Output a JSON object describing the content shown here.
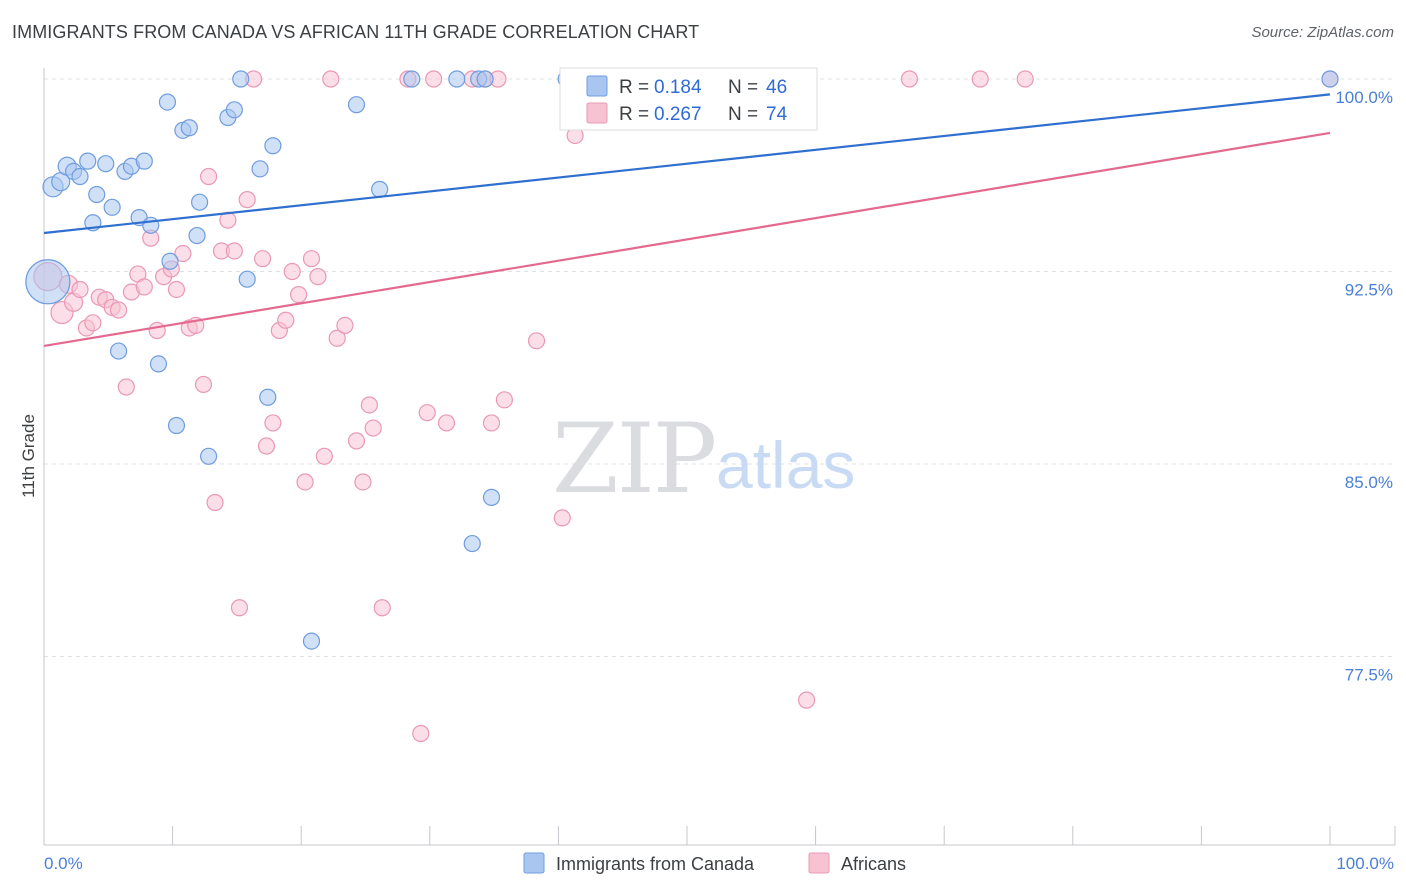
{
  "title": "IMMIGRANTS FROM CANADA VS AFRICAN 11TH GRADE CORRELATION CHART",
  "source": "Source: ZipAtlas.com",
  "watermark": {
    "zip": "ZIP",
    "atlas": "atlas"
  },
  "colors": {
    "canada_fill": "#a9c6f0",
    "canada_stroke": "#6f9ddf",
    "canada_line": "#2f6fd0",
    "africans_fill": "#f7c3d3",
    "africans_stroke": "#ea98b4",
    "africans_line": "#e4698f",
    "accent_text": "#4a7fd6",
    "grid": "#dde1e6"
  },
  "legend": {
    "rows": [
      {
        "r_label": "R =",
        "r_value": "0.184",
        "n_label": "N =",
        "n_value": "46"
      },
      {
        "r_label": "R =",
        "r_value": "0.267",
        "n_label": "N =",
        "n_value": "74"
      }
    ]
  },
  "bottom_legend": [
    "Immigrants from Canada",
    "Africans"
  ],
  "chart_data": {
    "type": "scatter",
    "title": "IMMIGRANTS FROM CANADA VS AFRICAN 11TH GRADE CORRELATION CHART",
    "xlabel": "",
    "ylabel": "11th Grade",
    "x_tick_labels": [
      "0.0%",
      "100.0%"
    ],
    "y_tick_labels": [
      "100.0%",
      "92.5%",
      "85.0%",
      "77.5%"
    ],
    "y_ticks": [
      100.0,
      92.5,
      85.0,
      77.5
    ],
    "xlim": [
      0,
      100
    ],
    "ylim": [
      71.0,
      100.6
    ],
    "grid": "horizontal dashed",
    "legend_position": "top-center",
    "series": [
      {
        "name": "Immigrants from Canada",
        "r": 0.184,
        "n": 46,
        "trend": {
          "x0": 0,
          "y0": 94.0,
          "x1": 100,
          "y1": 99.4
        },
        "points": [
          [
            0.3,
            92.1,
            22
          ],
          [
            0.7,
            95.8,
            10
          ],
          [
            1.3,
            96.0,
            9
          ],
          [
            1.8,
            96.6,
            9
          ],
          [
            2.3,
            96.4,
            8
          ],
          [
            2.8,
            96.2,
            8
          ],
          [
            3.4,
            96.8,
            8
          ],
          [
            3.8,
            94.4,
            8
          ],
          [
            4.1,
            95.5,
            8
          ],
          [
            4.8,
            96.7,
            8
          ],
          [
            5.3,
            95.0,
            8
          ],
          [
            5.8,
            89.4,
            8
          ],
          [
            6.3,
            96.4,
            8
          ],
          [
            6.8,
            96.6,
            8
          ],
          [
            7.4,
            94.6,
            8
          ],
          [
            7.8,
            96.8,
            8
          ],
          [
            8.3,
            94.3,
            8
          ],
          [
            8.9,
            88.9,
            8
          ],
          [
            9.6,
            99.1,
            8
          ],
          [
            9.8,
            92.9,
            8
          ],
          [
            10.3,
            86.5,
            8
          ],
          [
            10.8,
            98.0,
            8
          ],
          [
            11.3,
            98.1,
            8
          ],
          [
            11.9,
            93.9,
            8
          ],
          [
            12.1,
            95.2,
            8
          ],
          [
            12.8,
            85.3,
            8
          ],
          [
            14.3,
            98.5,
            8
          ],
          [
            14.8,
            98.8,
            8
          ],
          [
            15.3,
            100.0,
            8
          ],
          [
            15.8,
            92.2,
            8
          ],
          [
            16.8,
            96.5,
            8
          ],
          [
            17.4,
            87.6,
            8
          ],
          [
            17.8,
            97.4,
            8
          ],
          [
            20.8,
            78.1,
            8
          ],
          [
            24.3,
            99.0,
            8
          ],
          [
            26.1,
            95.7,
            8
          ],
          [
            28.6,
            100.0,
            8
          ],
          [
            32.1,
            100.0,
            8
          ],
          [
            33.3,
            81.9,
            8
          ],
          [
            33.8,
            100.0,
            8
          ],
          [
            34.3,
            100.0,
            8
          ],
          [
            34.8,
            83.7,
            8
          ],
          [
            40.6,
            100.0,
            8
          ],
          [
            41.8,
            100.0,
            8
          ],
          [
            47.2,
            100.0,
            8
          ],
          [
            100.0,
            100.0,
            8
          ]
        ]
      },
      {
        "name": "Africans",
        "r": 0.267,
        "n": 74,
        "trend": {
          "x0": 0,
          "y0": 89.6,
          "x1": 100,
          "y1": 97.9
        },
        "points": [
          [
            0.3,
            92.3,
            14
          ],
          [
            1.4,
            90.9,
            11
          ],
          [
            1.9,
            92.0,
            9
          ],
          [
            2.3,
            91.3,
            9
          ],
          [
            2.8,
            91.8,
            8
          ],
          [
            3.3,
            90.3,
            8
          ],
          [
            3.8,
            90.5,
            8
          ],
          [
            4.3,
            91.5,
            8
          ],
          [
            4.8,
            91.4,
            8
          ],
          [
            5.3,
            91.1,
            8
          ],
          [
            5.8,
            91.0,
            8
          ],
          [
            6.4,
            88.0,
            8
          ],
          [
            6.8,
            91.7,
            8
          ],
          [
            7.3,
            92.4,
            8
          ],
          [
            7.8,
            91.9,
            8
          ],
          [
            8.3,
            93.8,
            8
          ],
          [
            8.8,
            90.2,
            8
          ],
          [
            9.3,
            92.3,
            8
          ],
          [
            9.9,
            92.6,
            8
          ],
          [
            10.3,
            91.8,
            8
          ],
          [
            10.8,
            93.2,
            8
          ],
          [
            11.3,
            90.3,
            8
          ],
          [
            11.8,
            90.4,
            8
          ],
          [
            12.4,
            88.1,
            8
          ],
          [
            12.8,
            96.2,
            8
          ],
          [
            13.3,
            83.5,
            8
          ],
          [
            13.8,
            93.3,
            8
          ],
          [
            14.3,
            94.5,
            8
          ],
          [
            14.8,
            93.3,
            8
          ],
          [
            15.2,
            79.4,
            8
          ],
          [
            15.8,
            95.3,
            8
          ],
          [
            16.3,
            100.0,
            8
          ],
          [
            17.0,
            93.0,
            8
          ],
          [
            17.3,
            85.7,
            8
          ],
          [
            17.8,
            86.6,
            8
          ],
          [
            18.3,
            90.2,
            8
          ],
          [
            18.8,
            90.6,
            8
          ],
          [
            19.3,
            92.5,
            8
          ],
          [
            19.8,
            91.6,
            8
          ],
          [
            20.3,
            84.3,
            8
          ],
          [
            20.8,
            93.0,
            8
          ],
          [
            21.3,
            92.3,
            8
          ],
          [
            21.8,
            85.3,
            8
          ],
          [
            22.3,
            100.0,
            8
          ],
          [
            22.8,
            89.9,
            8
          ],
          [
            23.4,
            90.4,
            8
          ],
          [
            24.3,
            85.9,
            8
          ],
          [
            24.8,
            84.3,
            8
          ],
          [
            25.3,
            87.3,
            8
          ],
          [
            25.6,
            86.4,
            8
          ],
          [
            26.3,
            79.4,
            8
          ],
          [
            28.3,
            100.0,
            8
          ],
          [
            29.3,
            74.5,
            8
          ],
          [
            29.8,
            87.0,
            8
          ],
          [
            30.3,
            100.0,
            8
          ],
          [
            31.3,
            86.6,
            8
          ],
          [
            33.3,
            100.0,
            8
          ],
          [
            34.3,
            100.0,
            8
          ],
          [
            34.8,
            86.6,
            8
          ],
          [
            35.3,
            100.0,
            8
          ],
          [
            35.8,
            87.5,
            8
          ],
          [
            38.3,
            89.8,
            8
          ],
          [
            40.3,
            82.9,
            8
          ],
          [
            41.3,
            97.8,
            8
          ],
          [
            42.3,
            100.0,
            8
          ],
          [
            52.3,
            100.0,
            8
          ],
          [
            53.3,
            100.0,
            8
          ],
          [
            55.2,
            100.0,
            8
          ],
          [
            55.8,
            99.2,
            8
          ],
          [
            59.3,
            75.8,
            8
          ],
          [
            67.3,
            100.0,
            8
          ],
          [
            72.8,
            100.0,
            8
          ],
          [
            76.3,
            100.0,
            8
          ],
          [
            100.0,
            100.0,
            8
          ]
        ]
      }
    ]
  }
}
